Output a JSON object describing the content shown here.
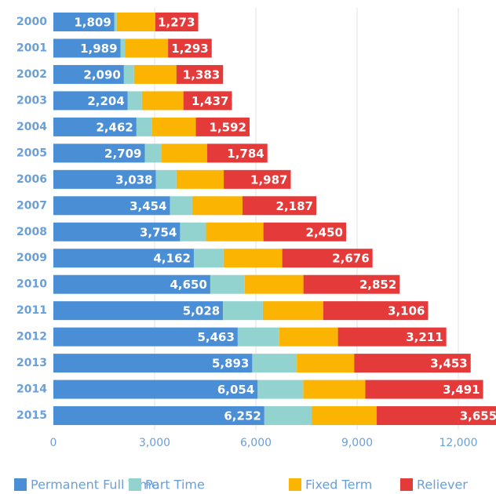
{
  "chart_data": {
    "type": "stacked-bar-horizontal",
    "categories": [
      "2000",
      "2001",
      "2002",
      "2003",
      "2004",
      "2005",
      "2006",
      "2007",
      "2008",
      "2009",
      "2010",
      "2011",
      "2012",
      "2013",
      "2014",
      "2015"
    ],
    "series": [
      {
        "name": "Permanent Full Time",
        "color": "#4a8ed6",
        "values": [
          1809,
          1989,
          2090,
          2204,
          2462,
          2709,
          3038,
          3454,
          3754,
          4162,
          4650,
          5028,
          5463,
          5893,
          6054,
          6252
        ],
        "value_labels": [
          "1,809",
          "1,989",
          "2,090",
          "2,204",
          "2,462",
          "2,709",
          "3,038",
          "3,454",
          "3,754",
          "4,162",
          "4,650",
          "5,028",
          "5,463",
          "5,893",
          "6,054",
          "6,252"
        ]
      },
      {
        "name": "Part Time",
        "color": "#93d3cf",
        "values": [
          70,
          130,
          300,
          420,
          460,
          500,
          610,
          660,
          770,
          880,
          1020,
          1180,
          1230,
          1320,
          1350,
          1400
        ]
      },
      {
        "name": "Fixed Term",
        "color": "#fbb402",
        "values": [
          1140,
          1280,
          1256,
          1230,
          1300,
          1350,
          1400,
          1490,
          1700,
          1740,
          1740,
          1790,
          1740,
          1700,
          1840,
          1930
        ]
      },
      {
        "name": "Reliever",
        "color": "#e53a3a",
        "values": [
          1273,
          1293,
          1383,
          1437,
          1592,
          1784,
          1987,
          2187,
          2450,
          2676,
          2852,
          3106,
          3211,
          3453,
          3491,
          3655
        ],
        "value_labels": [
          "1,273",
          "1,293",
          "1,383",
          "1,437",
          "1,592",
          "1,784",
          "1,987",
          "2,187",
          "2,450",
          "2,676",
          "2,852",
          "3,106",
          "3,211",
          "3,453",
          "3,491",
          "3,655"
        ]
      }
    ],
    "xlim": [
      0,
      13000
    ],
    "xticks": [
      0,
      {
        "value": 3000,
        "label": "3,000"
      },
      {
        "value": 6000,
        "label": "6,000"
      },
      {
        "value": 9000,
        "label": "9,000"
      },
      {
        "value": 12000,
        "label": "12,000"
      }
    ],
    "grid": true
  }
}
